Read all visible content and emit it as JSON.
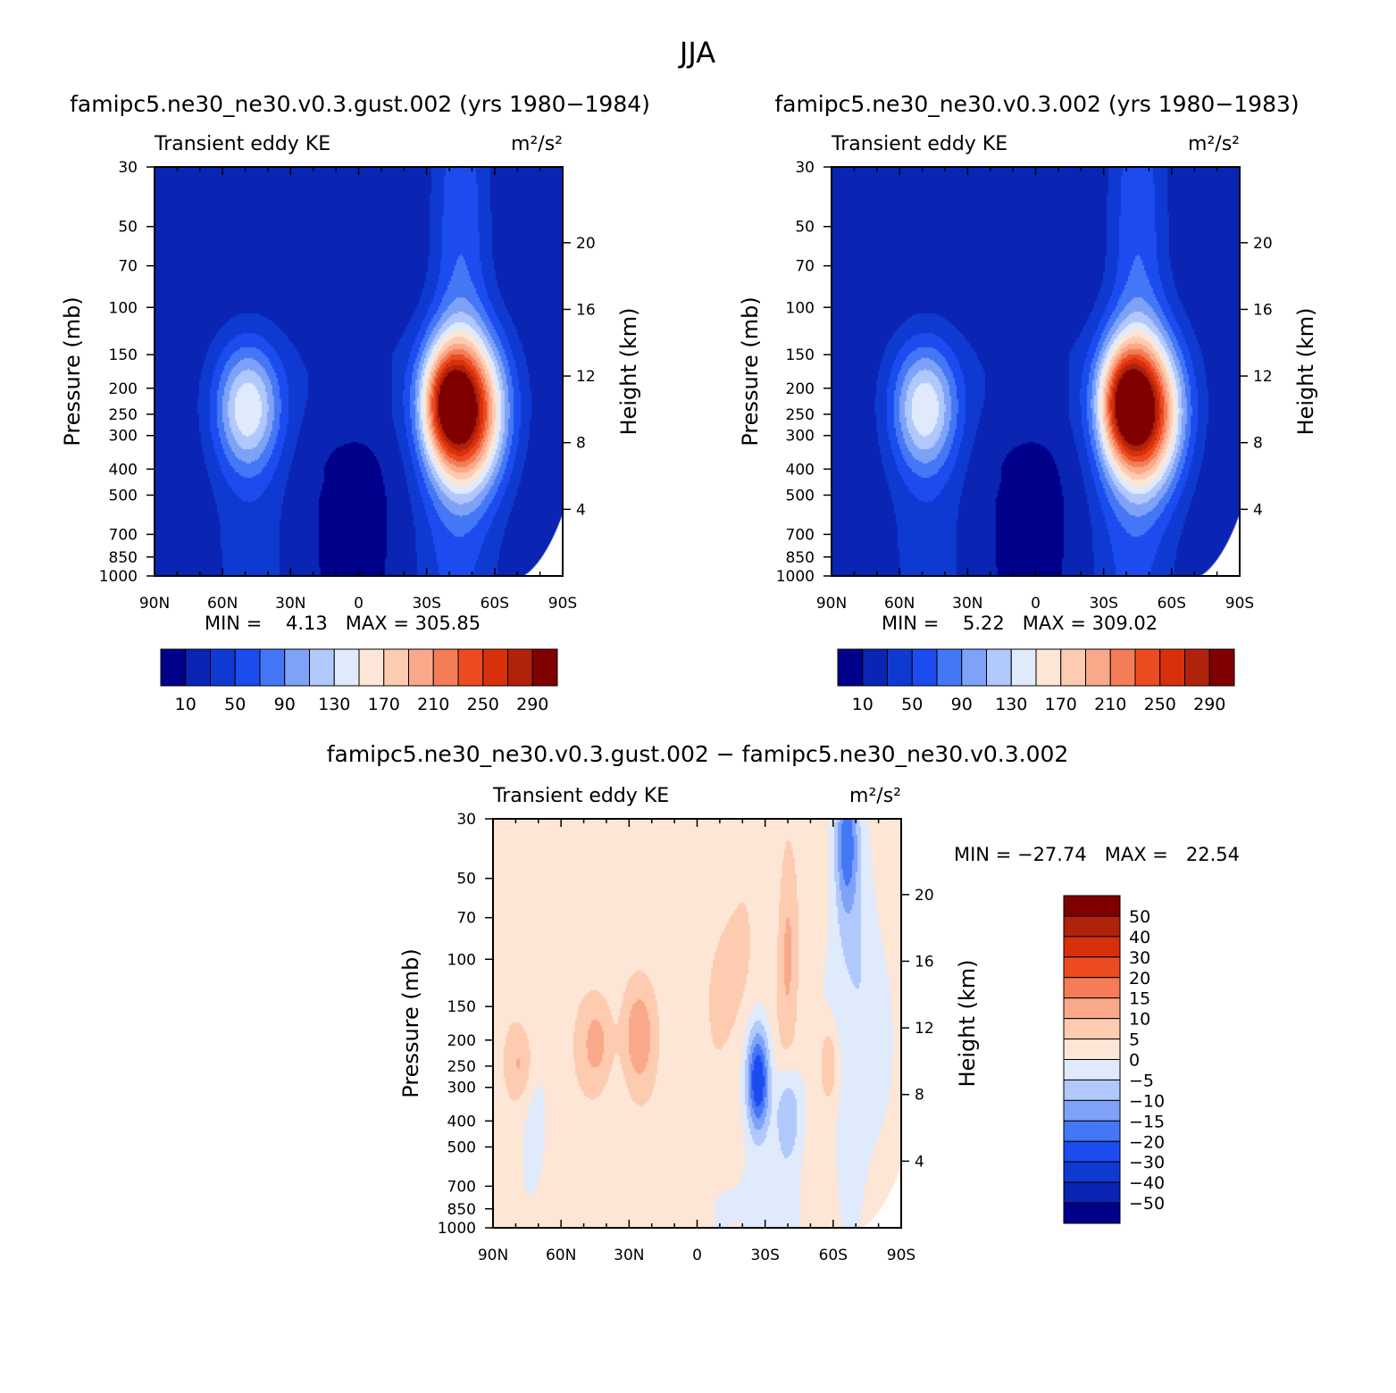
{
  "figure_title": "JJA",
  "palettes": {
    "abs": [
      "#00008b",
      "#0a24b4",
      "#0f3ad2",
      "#1c4cf0",
      "#4477f5",
      "#7ea2f8",
      "#b0c8fb",
      "#dfeafd",
      "#fde6d6",
      "#fccbb0",
      "#faa88a",
      "#f47c56",
      "#ec4b22",
      "#d8300b",
      "#b0220a",
      "#800000"
    ],
    "diff": [
      "#00008b",
      "#0a24b4",
      "#0f3ad2",
      "#1c4cf0",
      "#4477f5",
      "#7ea2f8",
      "#b0c8fb",
      "#dfeafd",
      "#fde6d6",
      "#fccbb0",
      "#faa88a",
      "#f47c56",
      "#ec4b22",
      "#d8300b",
      "#b0220a",
      "#800000"
    ]
  },
  "chart_data": [
    {
      "type": "heatmap",
      "title": "famipc5.ne30_ne30.v0.3.gust.002 (yrs 1980−1984)",
      "subtitle_left": "Transient eddy KE",
      "subtitle_right": "m²/s²",
      "ylabel": "Pressure (mb)",
      "y2label": "Height (km)",
      "stats": "MIN =    4.13   MAX = 305.85",
      "xticks": [
        "90N",
        "60N",
        "30N",
        "0",
        "30S",
        "60S",
        "90S"
      ],
      "yticks": [
        "30",
        "50",
        "70",
        "100",
        "150",
        "200",
        "250",
        "300",
        "400",
        "500",
        "700",
        "850",
        "1000"
      ],
      "y2ticks": [
        "20",
        "16",
        "12",
        "8",
        "4"
      ],
      "colorbar_labels": [
        "10",
        "50",
        "90",
        "130",
        "170",
        "210",
        "250",
        "290"
      ],
      "color_levels": [
        10,
        30,
        50,
        70,
        90,
        110,
        130,
        150,
        170,
        190,
        210,
        230,
        250,
        270,
        290
      ],
      "min": 4.13,
      "max": 305.85
    },
    {
      "type": "heatmap",
      "title": "famipc5.ne30_ne30.v0.3.002 (yrs 1980−1983)",
      "subtitle_left": "Transient eddy KE",
      "subtitle_right": "m²/s²",
      "ylabel": "Pressure (mb)",
      "y2label": "Height (km)",
      "stats": "MIN =    5.22   MAX = 309.02",
      "xticks": [
        "90N",
        "60N",
        "30N",
        "0",
        "30S",
        "60S",
        "90S"
      ],
      "yticks": [
        "30",
        "50",
        "70",
        "100",
        "150",
        "200",
        "250",
        "300",
        "400",
        "500",
        "700",
        "850",
        "1000"
      ],
      "y2ticks": [
        "20",
        "16",
        "12",
        "8",
        "4"
      ],
      "colorbar_labels": [
        "10",
        "50",
        "90",
        "130",
        "170",
        "210",
        "250",
        "290"
      ],
      "color_levels": [
        10,
        30,
        50,
        70,
        90,
        110,
        130,
        150,
        170,
        190,
        210,
        230,
        250,
        270,
        290
      ],
      "min": 5.22,
      "max": 309.02
    },
    {
      "type": "heatmap",
      "title": "famipc5.ne30_ne30.v0.3.gust.002 − famipc5.ne30_ne30.v0.3.002",
      "subtitle_left": "Transient eddy KE",
      "subtitle_right": "m²/s²",
      "ylabel": "Pressure (mb)",
      "y2label": "Height (km)",
      "stats": "MIN = −27.74   MAX =   22.54",
      "xticks": [
        "90N",
        "60N",
        "30N",
        "0",
        "30S",
        "60S",
        "90S"
      ],
      "yticks": [
        "30",
        "50",
        "70",
        "100",
        "150",
        "200",
        "250",
        "300",
        "400",
        "500",
        "700",
        "850",
        "1000"
      ],
      "y2ticks": [
        "20",
        "16",
        "12",
        "8",
        "4"
      ],
      "colorbar_labels": [
        "50",
        "40",
        "30",
        "20",
        "15",
        "10",
        "5",
        "0",
        "−5",
        "−10",
        "−15",
        "−20",
        "−30",
        "−40",
        "−50"
      ],
      "color_levels": [
        -50,
        -40,
        -30,
        -20,
        -15,
        -10,
        -5,
        0,
        5,
        10,
        15,
        20,
        30,
        40,
        50
      ],
      "min": -27.74,
      "max": 22.54
    }
  ]
}
